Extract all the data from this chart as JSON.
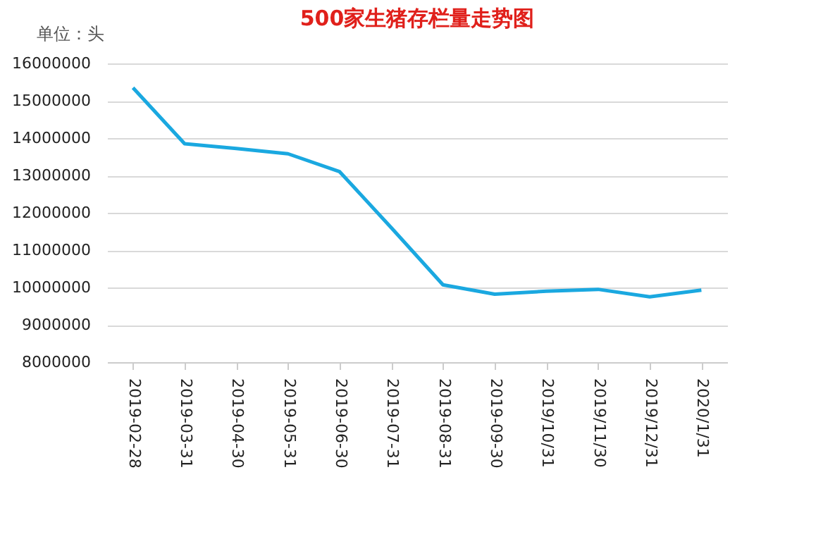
{
  "chart_data": {
    "type": "line",
    "title": "500家生猪存栏量走势图",
    "annotations": [
      "单位：头"
    ],
    "categories": [
      "2019-02-28",
      "2019-03-31",
      "2019-04-30",
      "2019-05-31",
      "2019-06-30",
      "2019-07-31",
      "2019-08-31",
      "2019-09-30",
      "2019/10/31",
      "2019/11/30",
      "2019/12/31",
      "2020/1/31"
    ],
    "series": [
      {
        "color": "#1aa8e0",
        "values": [
          15350000,
          13850000,
          13720000,
          13580000,
          13100000,
          11600000,
          10070000,
          9820000,
          9900000,
          9950000,
          9750000,
          9930000
        ]
      }
    ],
    "ylim": [
      8000000,
      16000000
    ],
    "yticks": [
      8000000,
      9000000,
      10000000,
      11000000,
      12000000,
      13000000,
      14000000,
      15000000,
      16000000
    ],
    "grid": "y",
    "legend": false,
    "marker": "none"
  }
}
